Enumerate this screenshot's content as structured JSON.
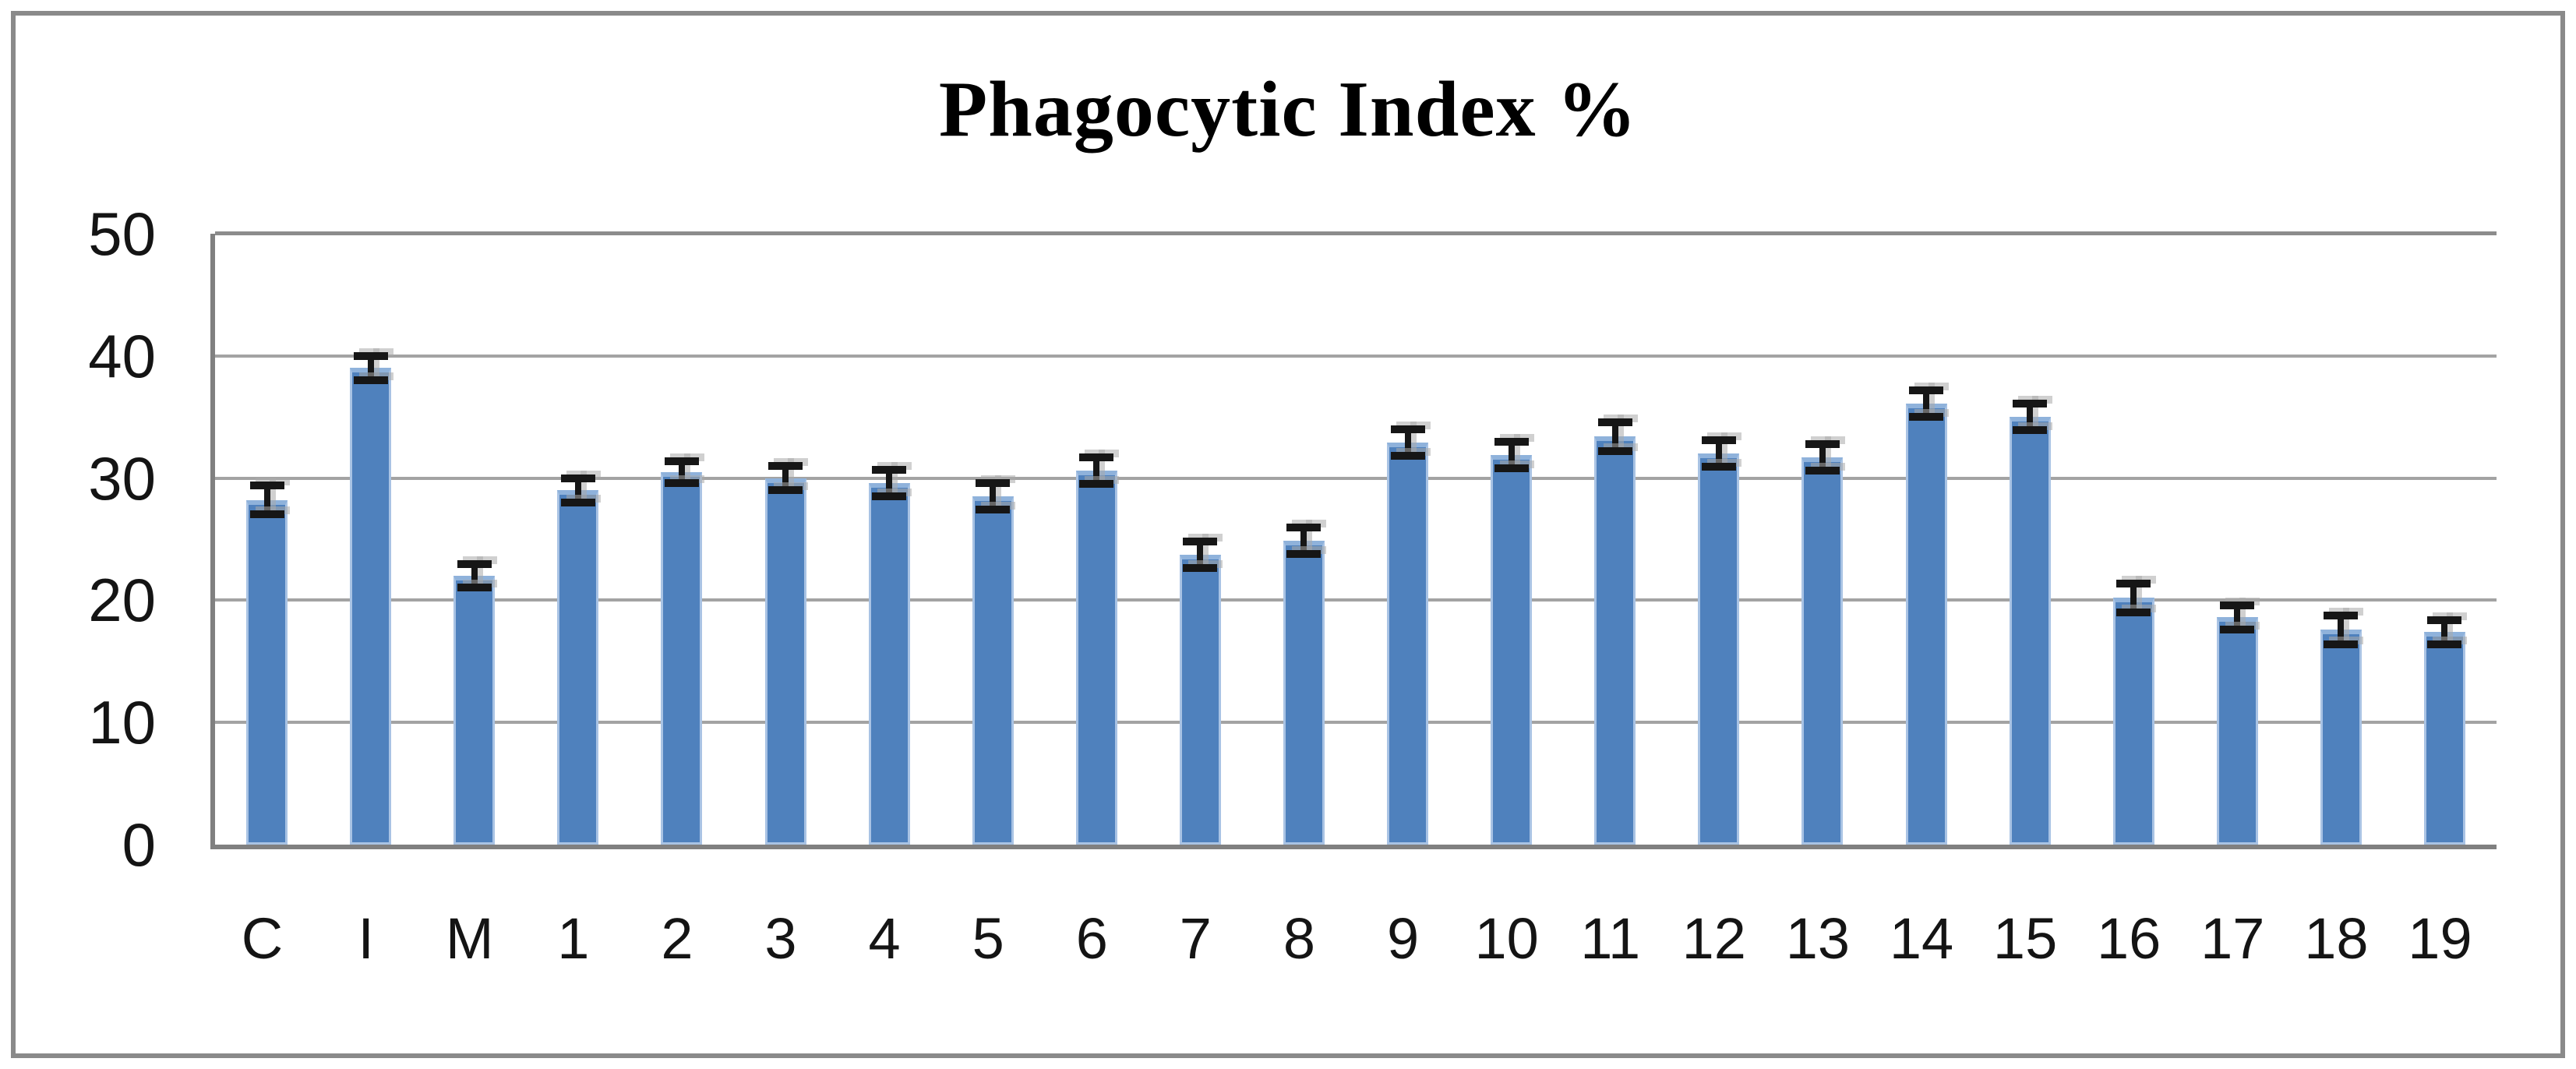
{
  "figure": {
    "title": "Phagocytic Index %"
  },
  "chart_data": {
    "type": "bar",
    "title": "Phagocytic Index %",
    "xlabel": "",
    "ylabel": "",
    "categories": [
      "C",
      "I",
      "M",
      "1",
      "2",
      "3",
      "4",
      "5",
      "6",
      "7",
      "8",
      "9",
      "10",
      "11",
      "12",
      "13",
      "14",
      "15",
      "16",
      "17",
      "18",
      "19"
    ],
    "values": [
      28.2,
      39.0,
      22.0,
      29.0,
      30.5,
      30.0,
      29.6,
      28.5,
      30.6,
      23.7,
      24.9,
      32.9,
      31.9,
      33.4,
      32.0,
      31.7,
      36.1,
      35.0,
      20.2,
      18.6,
      17.6,
      17.4
    ],
    "error_bars": [
      1.5,
      1.3,
      1.3,
      1.3,
      1.2,
      1.3,
      1.4,
      1.4,
      1.4,
      1.4,
      1.4,
      1.4,
      1.4,
      1.5,
      1.4,
      1.4,
      1.4,
      1.4,
      1.5,
      1.3,
      1.5,
      1.3
    ],
    "ylim": [
      0,
      50
    ],
    "yticks": [
      0,
      10,
      20,
      30,
      40,
      50
    ],
    "grid": true,
    "legend": "none",
    "colors": {
      "bar_fill": "#4f81bd",
      "bar_edge": "#a9c3e4",
      "error_bar": "#161616",
      "gridline": "#a3a3a3",
      "axis": "#808080",
      "frame": "#8a8a8a",
      "text": "#141414",
      "title_text": "#000000",
      "background": "#ffffff"
    }
  }
}
